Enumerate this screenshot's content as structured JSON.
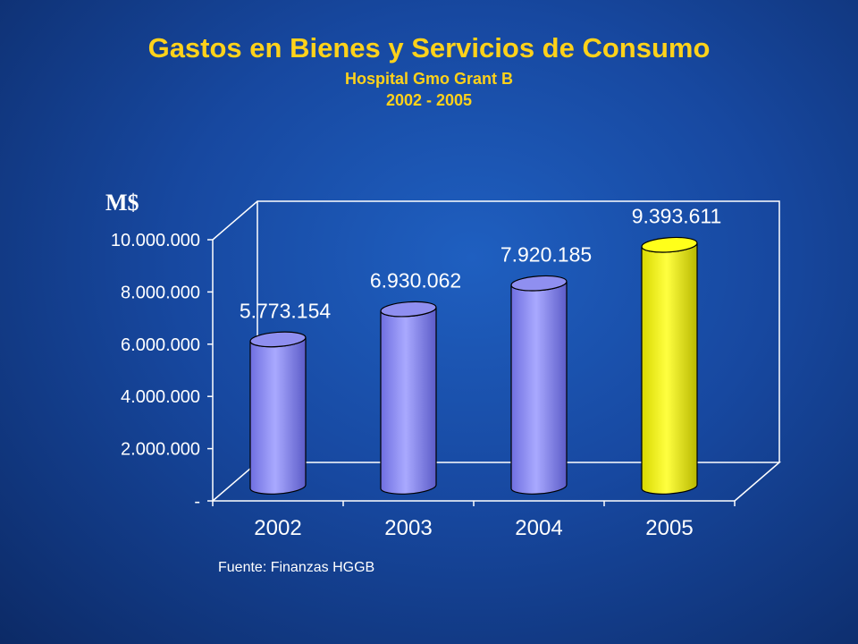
{
  "header": {
    "title": "Gastos en Bienes y Servicios de Consumo",
    "subtitle": "Hospital Gmo Grant B",
    "period": "2002 - 2005"
  },
  "footer": {
    "source": "Fuente: Finanzas HGGB"
  },
  "chart_data": {
    "type": "bar",
    "unit_label": "M$",
    "categories": [
      "2002",
      "2003",
      "2004",
      "2005"
    ],
    "values": [
      5773154,
      6930062,
      7920185,
      9393611
    ],
    "value_labels": [
      "5.773.154",
      "6.930.062",
      "7.920.185",
      "9.393.611"
    ],
    "ylim": [
      0,
      10000000
    ],
    "y_ticks": [
      {
        "value": 0,
        "label": "-"
      },
      {
        "value": 2000000,
        "label": "2.000.000"
      },
      {
        "value": 4000000,
        "label": "4.000.000"
      },
      {
        "value": 6000000,
        "label": "6.000.000"
      },
      {
        "value": 8000000,
        "label": "8.000.000"
      },
      {
        "value": 10000000,
        "label": "10.000.000"
      }
    ],
    "colors": [
      "#8f8ff0",
      "#8f8ff0",
      "#8f8ff0",
      "#ffff1a"
    ],
    "background": "#1748a0"
  }
}
